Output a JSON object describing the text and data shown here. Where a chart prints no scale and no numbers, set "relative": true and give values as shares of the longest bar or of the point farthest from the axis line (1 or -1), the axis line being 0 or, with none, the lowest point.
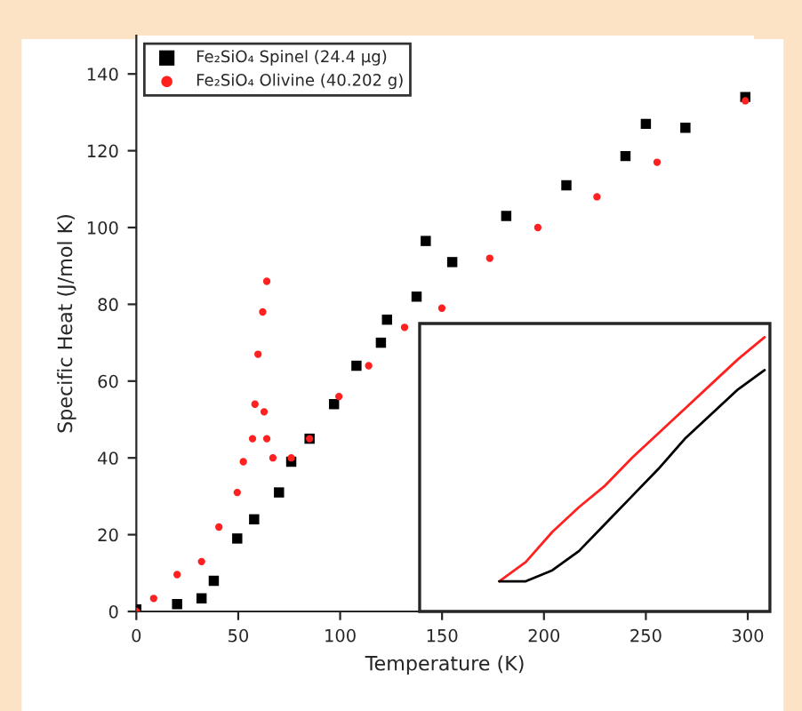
{
  "chart_data": [
    {
      "type": "scatter",
      "xlabel": "Temperature (K)",
      "ylabel": "Specific Heat (J/mol K)",
      "xlim": [
        0,
        303
      ],
      "ylim": [
        0,
        150
      ],
      "xticks": [
        0,
        50,
        100,
        150,
        200,
        250,
        300
      ],
      "yticks": [
        0,
        20,
        40,
        60,
        80,
        100,
        120,
        140
      ],
      "legend": "top left",
      "grid": false,
      "series": [
        {
          "name": "Fe₂SiO₄ Spinel (24.4 µg)",
          "color": "#000000",
          "marker": "square",
          "x": [
            0,
            20,
            32,
            38,
            49.5,
            57.8,
            70,
            76,
            85,
            97,
            108,
            120,
            123,
            137.5,
            142,
            155,
            181.5,
            211,
            240,
            250,
            269.4,
            298.8
          ],
          "values": [
            0.5,
            1.9,
            3.4,
            8,
            19,
            24,
            31,
            39,
            45,
            54,
            64,
            70,
            76,
            82,
            96.5,
            91,
            103,
            111,
            118.6,
            127,
            126,
            134
          ]
        },
        {
          "name": "Fe₂SiO₄ Olivine (40.202 g)",
          "color": "#ff2020",
          "marker": "circle",
          "x": [
            0,
            8.5,
            20,
            32,
            40.5,
            49.5,
            52.5,
            57,
            58.2,
            59.7,
            62,
            64,
            62.7,
            64,
            67,
            76,
            85,
            99.4,
            114,
            131.6,
            149.9,
            173.4,
            197,
            226,
            255.5,
            298.8
          ],
          "values": [
            0,
            3.4,
            9.6,
            13,
            22,
            31,
            39,
            45,
            54,
            67,
            78,
            86,
            52,
            45,
            40,
            40,
            45,
            56,
            64,
            74,
            79,
            92,
            100,
            108,
            117,
            133
          ]
        }
      ]
    },
    {
      "type": "line",
      "relative": true,
      "categories": [
        null,
        null,
        null,
        null,
        null,
        null,
        null,
        null,
        null,
        null,
        null
      ],
      "series": [
        {
          "color": "#ff2020",
          "values": [
            0.11,
            0.18,
            0.29,
            0.38,
            0.46,
            0.56,
            0.65,
            0.74,
            0.83,
            0.92,
            1.0
          ]
        },
        {
          "color": "#000000",
          "values": [
            0.11,
            0.11,
            0.15,
            0.22,
            0.32,
            0.42,
            0.52,
            0.63,
            0.72,
            0.81,
            0.88
          ]
        }
      ]
    }
  ]
}
